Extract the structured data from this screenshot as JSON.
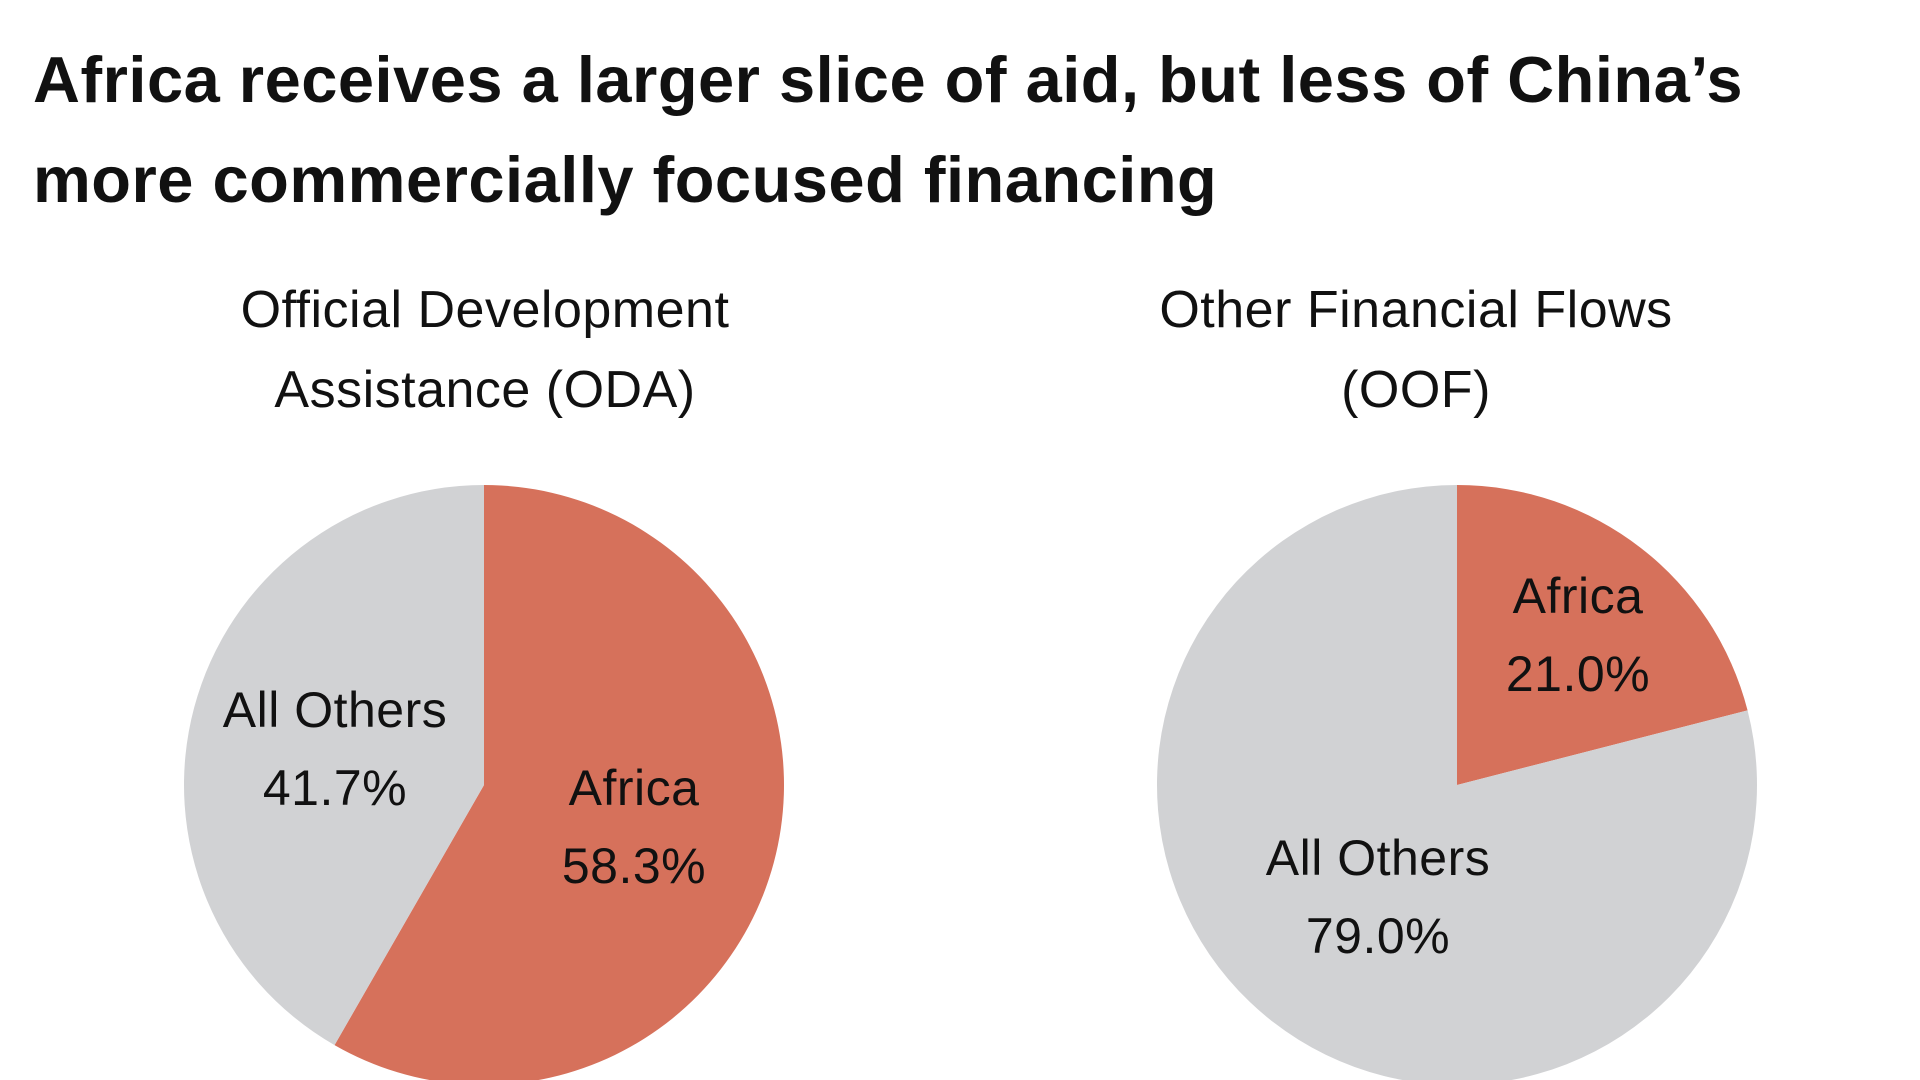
{
  "title": "Africa receives a larger slice of aid, but less of China’s more commercially focused financing",
  "chart_data": [
    {
      "type": "pie",
      "title_lines": [
        "Official Development",
        "Assistance (ODA)"
      ],
      "slices": [
        {
          "label": "Africa",
          "value": 58.3,
          "value_label": "58.3%",
          "color": "#d6715b"
        },
        {
          "label": "All Others",
          "value": 41.7,
          "value_label": "41.7%",
          "color": "#d1d2d4"
        }
      ],
      "start": "12 o'clock",
      "direction": "clockwise"
    },
    {
      "type": "pie",
      "title_lines": [
        "Other Financial Flows",
        "(OOF)"
      ],
      "slices": [
        {
          "label": "Africa",
          "value": 21.0,
          "value_label": "21.0%",
          "color": "#d6715b"
        },
        {
          "label": "All Others",
          "value": 79.0,
          "value_label": "79.0%",
          "color": "#d1d2d4"
        }
      ],
      "start": "12 o'clock",
      "direction": "clockwise"
    }
  ]
}
